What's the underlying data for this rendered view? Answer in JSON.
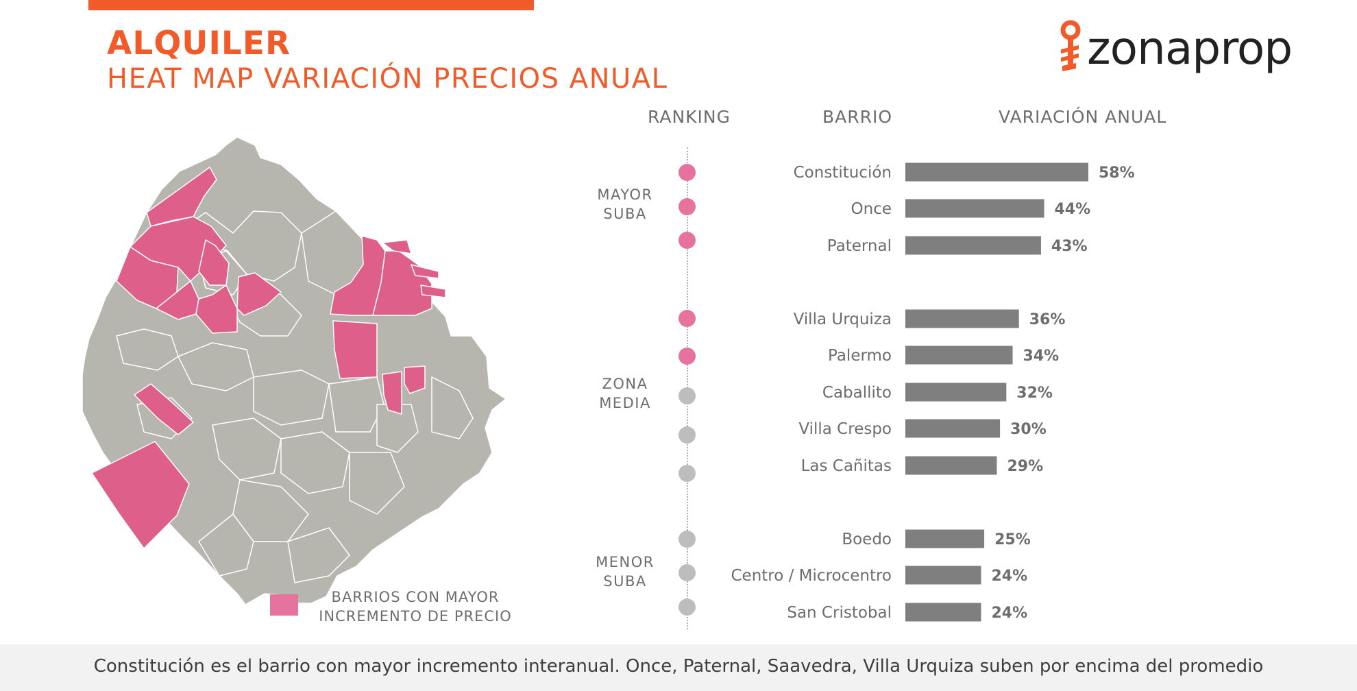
{
  "header": {
    "title": "ALQUILER",
    "subtitle": "HEAT MAP VARIACIÓN PRECIOS ANUAL"
  },
  "brand": {
    "name": "zonaprop",
    "color": "#f15a29"
  },
  "colors": {
    "accent": "#f15a29",
    "highlight": "#e5739d",
    "bar": "#7f7f7f",
    "dot_gray": "#bdbdbd",
    "map_gray": "#b7b6ae"
  },
  "legend": {
    "label": "BARRIOS CON MAYOR INCREMENTO DE PRECIO"
  },
  "columns": {
    "ranking": "RANKING",
    "barrio": "BARRIO",
    "variacion": "VARIACIÓN ANUAL"
  },
  "zones": [
    {
      "label": "MAYOR SUBA",
      "line1": "MAYOR",
      "line2": "SUBA"
    },
    {
      "label": "ZONA MEDIA",
      "line1": "ZONA",
      "line2": "MEDIA"
    },
    {
      "label": "MENOR SUBA",
      "line1": "MENOR",
      "line2": "SUBA"
    }
  ],
  "chart_data": {
    "type": "bar",
    "orientation": "horizontal",
    "categories": [
      "Constitución",
      "Once",
      "Paternal",
      "Villa Urquiza",
      "Palermo",
      "Caballito",
      "Villa Crespo",
      "Las Cañitas",
      "Boedo",
      "Centro / Microcentro",
      "San Cristobal"
    ],
    "values": [
      58,
      44,
      43,
      36,
      34,
      32,
      30,
      29,
      25,
      24,
      24
    ],
    "value_labels": [
      "58%",
      "44%",
      "43%",
      "36%",
      "34%",
      "32%",
      "30%",
      "29%",
      "25%",
      "24%",
      "24%"
    ],
    "highlighted": [
      true,
      true,
      true,
      true,
      true,
      false,
      false,
      false,
      false,
      false,
      false
    ],
    "groups": [
      0,
      0,
      0,
      1,
      1,
      1,
      1,
      1,
      2,
      2,
      2
    ],
    "unit": "%",
    "xlim": [
      0,
      60
    ]
  },
  "footer": {
    "text": "Constitución es el barrio con mayor incremento interanual. Once, Paternal, Saavedra, Villa Urquiza suben por encima del promedio"
  }
}
